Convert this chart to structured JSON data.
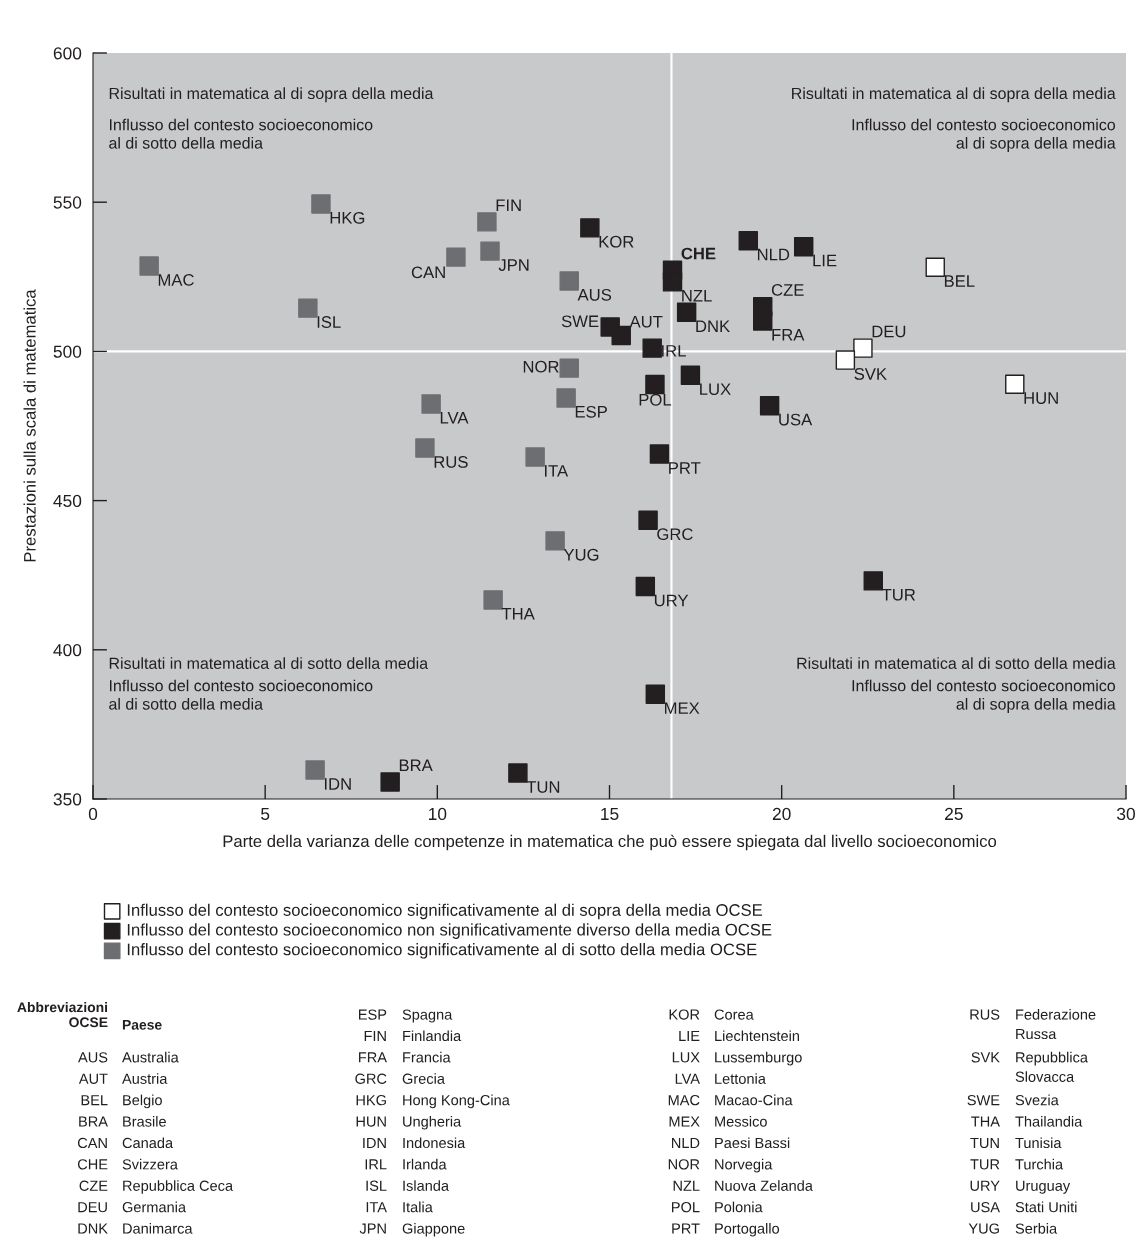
{
  "chart_data": {
    "type": "scatter",
    "xlabel": "Parte della varianza delle competenze in matematica che può essere spiegata dal livello socioeconomico",
    "ylabel": "Prestazioni sulla scala di matematica",
    "xlim": [
      0,
      30
    ],
    "xticks": [
      0,
      5,
      10,
      15,
      20,
      25,
      30
    ],
    "ylim": [
      350,
      600
    ],
    "yticks": [
      350,
      400,
      450,
      500,
      550,
      600
    ],
    "grid": false,
    "marker": "square",
    "legend": "bottom",
    "ref_lines": [
      {
        "axis": "x",
        "value": 16.8,
        "color": "#ffffff"
      },
      {
        "axis": "y",
        "value": 500,
        "color": "#ffffff"
      }
    ],
    "series": [
      {
        "name": "Influsso del contesto socioeconomico significativamente al di sopra della media OCSE",
        "color": "#ffffff",
        "x": [
          24.46,
          22.36,
          21.85,
          26.77
        ],
        "values": [
          528.2,
          501.1,
          497.1,
          489.0
        ]
      },
      {
        "name": "Influsso del contesto socioeconomico non significativamente diverso della media OCSE",
        "color": "#231f20",
        "x": [
          14.43,
          16.83,
          16.83,
          19.03,
          20.64,
          19.45,
          19.45,
          17.24,
          15.02,
          15.34,
          16.24,
          16.32,
          17.35,
          19.65,
          16.45,
          16.12,
          16.04,
          22.66,
          16.33,
          8.63,
          12.34
        ],
        "values": [
          541.4,
          527.2,
          523.3,
          537.1,
          535.1,
          515.0,
          510.2,
          513.1,
          508.2,
          505.3,
          501.1,
          488.9,
          492.0,
          481.8,
          465.6,
          443.4,
          421.2,
          423.1,
          385.1,
          355.7,
          358.7
        ]
      },
      {
        "name": "Influsso del contesto socioeconomico significativamente al di sotto della media OCSE",
        "color": "#6d6e71",
        "x": [
          1.63,
          6.62,
          6.24,
          11.44,
          11.53,
          10.54,
          13.83,
          13.83,
          13.74,
          9.82,
          9.64,
          12.84,
          13.42,
          11.62,
          6.45
        ],
        "values": [
          528.6,
          549.4,
          514.5,
          543.4,
          533.6,
          531.6,
          523.6,
          494.4,
          484.4,
          482.4,
          467.6,
          464.6,
          436.5,
          416.7,
          359.7
        ]
      }
    ],
    "annotations": [
      {
        "text": "BEL",
        "x": 24.46,
        "y": 528.2
      },
      {
        "text": "DEU",
        "x": 22.36,
        "y": 501.1
      },
      {
        "text": "SVK",
        "x": 21.85,
        "y": 497.1
      },
      {
        "text": "HUN",
        "x": 26.77,
        "y": 489.0
      },
      {
        "text": "KOR",
        "x": 14.43,
        "y": 541.4
      },
      {
        "text": "CHE",
        "x": 16.83,
        "y": 527.2
      },
      {
        "text": "NZL",
        "x": 16.83,
        "y": 523.3
      },
      {
        "text": "NLD",
        "x": 19.03,
        "y": 537.1
      },
      {
        "text": "LIE",
        "x": 20.64,
        "y": 535.1
      },
      {
        "text": "CZE",
        "x": 19.45,
        "y": 515.0
      },
      {
        "text": "FRA",
        "x": 19.45,
        "y": 510.2
      },
      {
        "text": "DNK",
        "x": 17.24,
        "y": 513.1
      },
      {
        "text": "SWE",
        "x": 15.02,
        "y": 508.2
      },
      {
        "text": "AUT",
        "x": 15.34,
        "y": 505.3
      },
      {
        "text": "IRL",
        "x": 16.24,
        "y": 501.1
      },
      {
        "text": "POL",
        "x": 16.32,
        "y": 488.9
      },
      {
        "text": "LUX",
        "x": 17.35,
        "y": 492.0
      },
      {
        "text": "USA",
        "x": 19.65,
        "y": 481.8
      },
      {
        "text": "PRT",
        "x": 16.45,
        "y": 465.6
      },
      {
        "text": "GRC",
        "x": 16.12,
        "y": 443.4
      },
      {
        "text": "URY",
        "x": 16.04,
        "y": 421.2
      },
      {
        "text": "TUR",
        "x": 22.66,
        "y": 423.1
      },
      {
        "text": "MEX",
        "x": 16.33,
        "y": 385.1
      },
      {
        "text": "BRA",
        "x": 8.63,
        "y": 355.7
      },
      {
        "text": "TUN",
        "x": 12.34,
        "y": 358.7
      },
      {
        "text": "MAC",
        "x": 1.63,
        "y": 528.6
      },
      {
        "text": "HKG",
        "x": 6.62,
        "y": 549.4
      },
      {
        "text": "ISL",
        "x": 6.24,
        "y": 514.5
      },
      {
        "text": "FIN",
        "x": 11.44,
        "y": 543.4
      },
      {
        "text": "JPN",
        "x": 11.53,
        "y": 533.6
      },
      {
        "text": "CAN",
        "x": 10.54,
        "y": 531.6
      },
      {
        "text": "AUS",
        "x": 13.83,
        "y": 523.6
      },
      {
        "text": "NOR",
        "x": 13.83,
        "y": 494.4
      },
      {
        "text": "ESP",
        "x": 13.74,
        "y": 484.4
      },
      {
        "text": "LVA",
        "x": 9.82,
        "y": 482.4
      },
      {
        "text": "RUS",
        "x": 9.64,
        "y": 467.6
      },
      {
        "text": "ITA",
        "x": 12.84,
        "y": 464.6
      },
      {
        "text": "YUG",
        "x": 13.42,
        "y": 436.5
      },
      {
        "text": "THA",
        "x": 11.62,
        "y": 416.7
      },
      {
        "text": "IDN",
        "x": 6.45,
        "y": 359.7
      },
      "Risultati in matematica al di sopra della media",
      "Influsso del contesto socioeconomico\nal di sotto della media",
      "Risultati in matematica al di sopra della media",
      "Influsso del contesto socioeconomico\nal di sopra della media",
      "Risultati in matematica al di sotto della media",
      "Influsso del contesto socioeconomico\nal di sotto della media",
      "Risultati in matematica al di sotto della media",
      "Influsso del contesto socioeconomico\nal di sopra della media",
      "Abbreviazioni\nOCSE\tPaese",
      "AUS\tAustralia",
      "AUT\tAustria",
      "BEL\tBelgio",
      "BRA\tBrasile",
      "CAN\tCanada",
      "CHE\tSvizzera",
      "CZE\tRepubblica Ceca",
      "DEU\tGermania",
      "DNK\tDanimarca",
      "ESP\tSpagna",
      "FIN\tFinlandia",
      "FRA\tFrancia",
      "GRC\tGrecia",
      "HKG\tHong Kong-Cina",
      "HUN\tUngheria",
      "IDN\tIndonesia",
      "IRL\tIrlanda",
      "ISL\tIslanda",
      "ITA\tItalia",
      "JPN\tGiappone",
      "KOR\tCorea",
      "LIE\tLiechtenstein",
      "LUX\tLussemburgo",
      "LVA\tLettonia",
      "MAC\tMacao-Cina",
      "MEX\tMessico",
      "NLD\tPaesi Bassi",
      "NOR\tNorvegia",
      "NZL\tNuova Zelanda",
      "POL\tPolonia",
      "PRT\tPortogallo",
      "RUS\tFederazione\nRussa",
      "SVK\tRepubblica\nSlovacca",
      "SWE\tSvezia",
      "THA\tThailandia",
      "TUN\tTunisia",
      "TUR\tTurchia",
      "URY\tUruguay",
      "USA\tStati Uniti",
      "YUG\tSerbia"
    ]
  }
}
